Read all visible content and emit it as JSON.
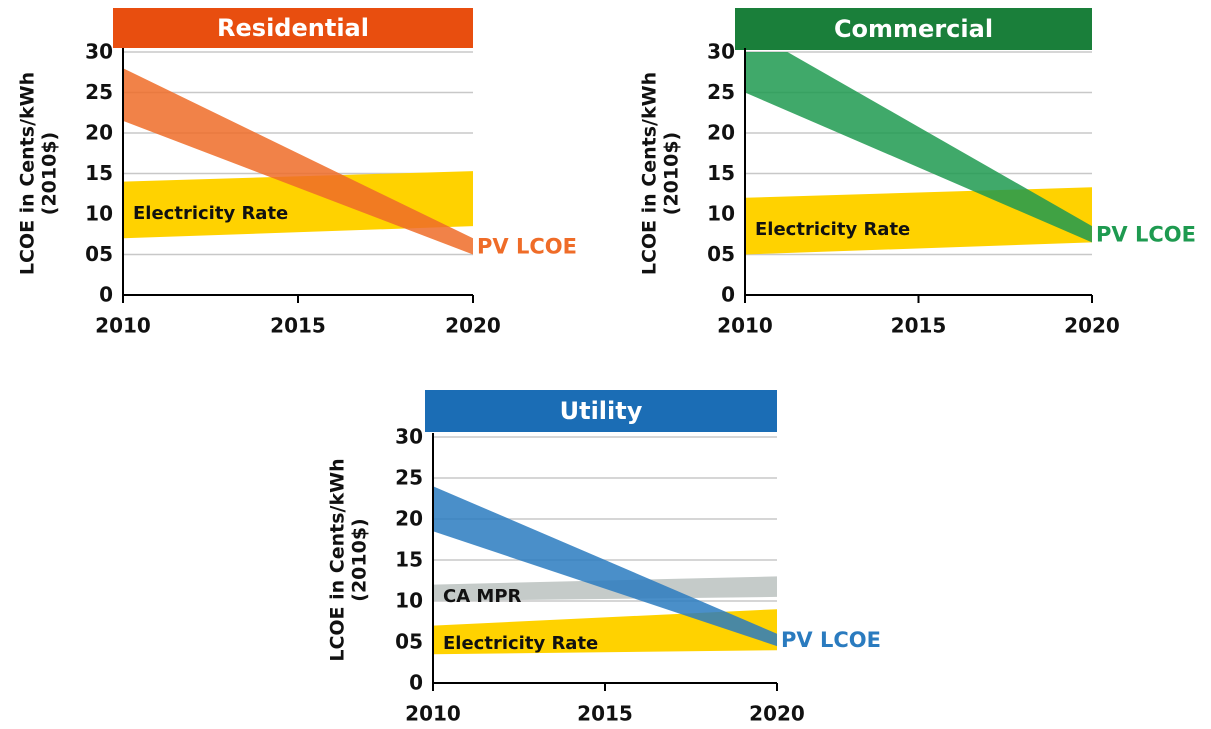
{
  "chart_data": [
    {
      "type": "band",
      "title": "Residential",
      "title_color": "#e84e0f",
      "ylabel": "LCOE in Cents/kWh",
      "ylabel2": "(2010$)",
      "xlim": [
        2010,
        2020
      ],
      "xticks": [
        2010,
        2015,
        2020
      ],
      "ylim": [
        0,
        30
      ],
      "yticks": [
        0,
        {
          "value": 5,
          "label": "05"
        },
        10,
        15,
        20,
        25,
        30
      ],
      "grid": true,
      "x": [
        2010,
        2020
      ],
      "series": [
        {
          "name": "PV LCOE",
          "color": "#ef6c28",
          "lower": [
            21.5,
            5
          ],
          "upper": [
            28,
            7
          ]
        },
        {
          "name": "Electricity Rate",
          "color": "#ffd200",
          "lower": [
            7,
            8.5
          ],
          "upper": [
            14,
            15.3
          ]
        }
      ]
    },
    {
      "type": "band",
      "title": "Commercial",
      "title_color": "#1a7f3a",
      "ylabel": "LCOE in Cents/kWh",
      "ylabel2": "(2010$)",
      "xlim": [
        2010,
        2020
      ],
      "xticks": [
        2010,
        2015,
        2020
      ],
      "ylim": [
        0,
        30
      ],
      "yticks": [
        0,
        {
          "value": 5,
          "label": "05"
        },
        10,
        15,
        20,
        25,
        30
      ],
      "grid": true,
      "x": [
        2010,
        2020
      ],
      "series": [
        {
          "name": "PV LCOE",
          "color": "#1e9a50",
          "lower": [
            25,
            6.5
          ],
          "upper": [
            33,
            8.5
          ]
        },
        {
          "name": "Electricity Rate",
          "color": "#ffd200",
          "lower": [
            5,
            6.5
          ],
          "upper": [
            12,
            13.3
          ]
        }
      ]
    },
    {
      "type": "band",
      "title": "Utility",
      "title_color": "#1b6db5",
      "ylabel": "LCOE in Cents/kWh",
      "ylabel2": "(2010$)",
      "xlim": [
        2010,
        2020
      ],
      "xticks": [
        2010,
        2015,
        2020
      ],
      "ylim": [
        0,
        30
      ],
      "yticks": [
        0,
        {
          "value": 5,
          "label": "05"
        },
        10,
        15,
        20,
        25,
        30
      ],
      "grid": true,
      "x": [
        2010,
        2020
      ],
      "series": [
        {
          "name": "PV LCOE",
          "color": "#2a7bbf",
          "lower": [
            18.5,
            4.5
          ],
          "upper": [
            24,
            6
          ]
        },
        {
          "name": "CA MPR",
          "color": "#c5cbc9",
          "lower": [
            10,
            10.5
          ],
          "upper": [
            12,
            13
          ]
        },
        {
          "name": "Electricity Rate",
          "color": "#ffd200",
          "lower": [
            3.5,
            4
          ],
          "upper": [
            7,
            9
          ]
        }
      ]
    }
  ]
}
